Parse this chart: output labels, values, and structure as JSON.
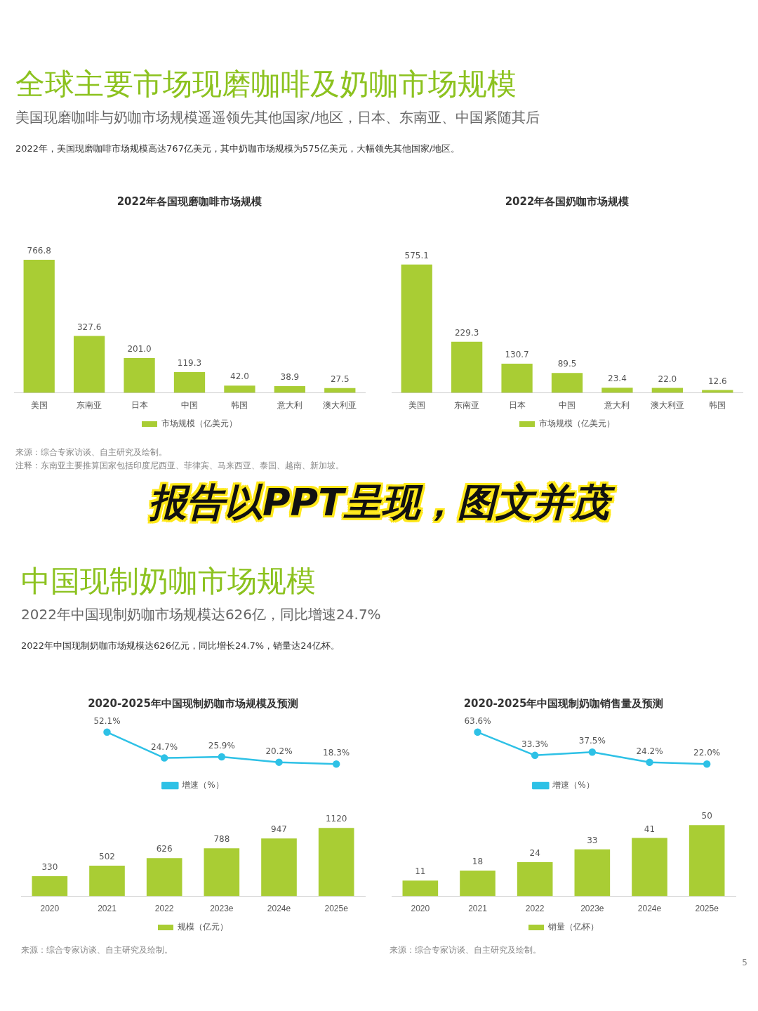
{
  "chart_data": [
    {
      "type": "bar",
      "title": "2022年各国现磨咖啡市场规模",
      "categories": [
        "美国",
        "东南亚",
        "日本",
        "中国",
        "韩国",
        "意大利",
        "澳大利亚"
      ],
      "series": [
        {
          "name": "市场规模（亿美元）",
          "color": "#a9cd34",
          "values": [
            766.8,
            327.6,
            201.0,
            119.3,
            42.0,
            38.9,
            27.5
          ],
          "value_labels": [
            "766.8",
            "327.6",
            "201.0",
            "119.3",
            "42.0",
            "38.9",
            "27.5"
          ]
        }
      ],
      "legend": "bottom",
      "grid": false,
      "annotations": [
        "全球主要市场现磨咖啡及奶咖市场规模",
        "美国现磨咖啡与奶咖市场规模遥遥领先其他国家/地区，日本、东南亚、中国紧随其后",
        "2022年，美国现磨咖啡市场规模高达767亿美元，其中奶咖市场规模为575亿美元，大幅领先其他国家/地区。",
        "来源：综合专家访谈、自主研究及绘制。",
        "注释：东南亚主要推算国家包括印度尼西亚、菲律宾、马来西亚、泰国、越南、新加坡。"
      ]
    },
    {
      "type": "bar",
      "title": "2022年各国奶咖市场规模",
      "categories": [
        "美国",
        "东南亚",
        "日本",
        "中国",
        "意大利",
        "澳大利亚",
        "韩国"
      ],
      "series": [
        {
          "name": "市场规模（亿美元）",
          "color": "#a9cd34",
          "values": [
            575.1,
            229.3,
            130.7,
            89.5,
            23.4,
            22.0,
            12.6
          ],
          "value_labels": [
            "575.1",
            "229.3",
            "130.7",
            "89.5",
            "23.4",
            "22.0",
            "12.6"
          ]
        }
      ],
      "legend": "bottom",
      "grid": false,
      "annotations": [
        "报告以PPT呈现，图文并茂"
      ]
    },
    {
      "type": "line",
      "title": "2020-2025年中国现制奶咖市场规模及预测",
      "categories": [
        null,
        null,
        null,
        null,
        null,
        null
      ],
      "tick_labels": false,
      "series": [
        {
          "name": "增速（%）",
          "color": "#2ec1e6",
          "values": [
            null,
            52.1,
            24.7,
            25.9,
            20.2,
            18.3
          ],
          "value_labels": [
            null,
            "52.1%",
            "24.7%",
            "25.9%",
            "20.2%",
            "18.3%"
          ]
        }
      ],
      "legend": "bottom",
      "grid": false,
      "marker": "circle",
      "annotations": [
        "中国现制奶咖市场规模",
        "2022年中国现制奶咖市场规模达626亿，同比增速24.7%",
        "2022年中国现制奶咖市场规模达626亿元，同比增长24.7%，销量达24亿杯。",
        "来源：综合专家访谈、自主研究及绘制。"
      ]
    },
    {
      "type": "bar",
      "categories": [
        "2020",
        "2021",
        "2022",
        "2023e",
        "2024e",
        "2025e"
      ],
      "series": [
        {
          "name": "规模（亿元）",
          "color": "#a9cd34",
          "values": [
            330,
            502,
            626,
            788,
            947,
            1120
          ],
          "value_labels": [
            "330",
            "502",
            "626",
            "788",
            "947",
            "1120"
          ]
        }
      ],
      "legend": "bottom",
      "grid": false
    },
    {
      "type": "line",
      "title": "2020-2025年中国现制奶咖销售量及预测",
      "categories": [
        null,
        null,
        null,
        null,
        null,
        null
      ],
      "tick_labels": false,
      "series": [
        {
          "name": "增速（%）",
          "color": "#2ec1e6",
          "values": [
            null,
            63.6,
            33.3,
            37.5,
            24.2,
            22.0
          ],
          "value_labels": [
            null,
            "63.6%",
            "33.3%",
            "37.5%",
            "24.2%",
            "22.0%"
          ]
        }
      ],
      "legend": "bottom",
      "grid": false,
      "marker": "circle",
      "annotations": [
        "来源：综合专家访谈、自主研究及绘制。",
        "5"
      ]
    },
    {
      "type": "bar",
      "categories": [
        "2020",
        "2021",
        "2022",
        "2023e",
        "2024e",
        "2025e"
      ],
      "series": [
        {
          "name": "销量（亿杯）",
          "color": "#a9cd34",
          "values": [
            11,
            18,
            24,
            33,
            41,
            50
          ],
          "value_labels": [
            "11",
            "18",
            "24",
            "33",
            "41",
            "50"
          ]
        }
      ],
      "legend": "bottom",
      "grid": false
    }
  ]
}
